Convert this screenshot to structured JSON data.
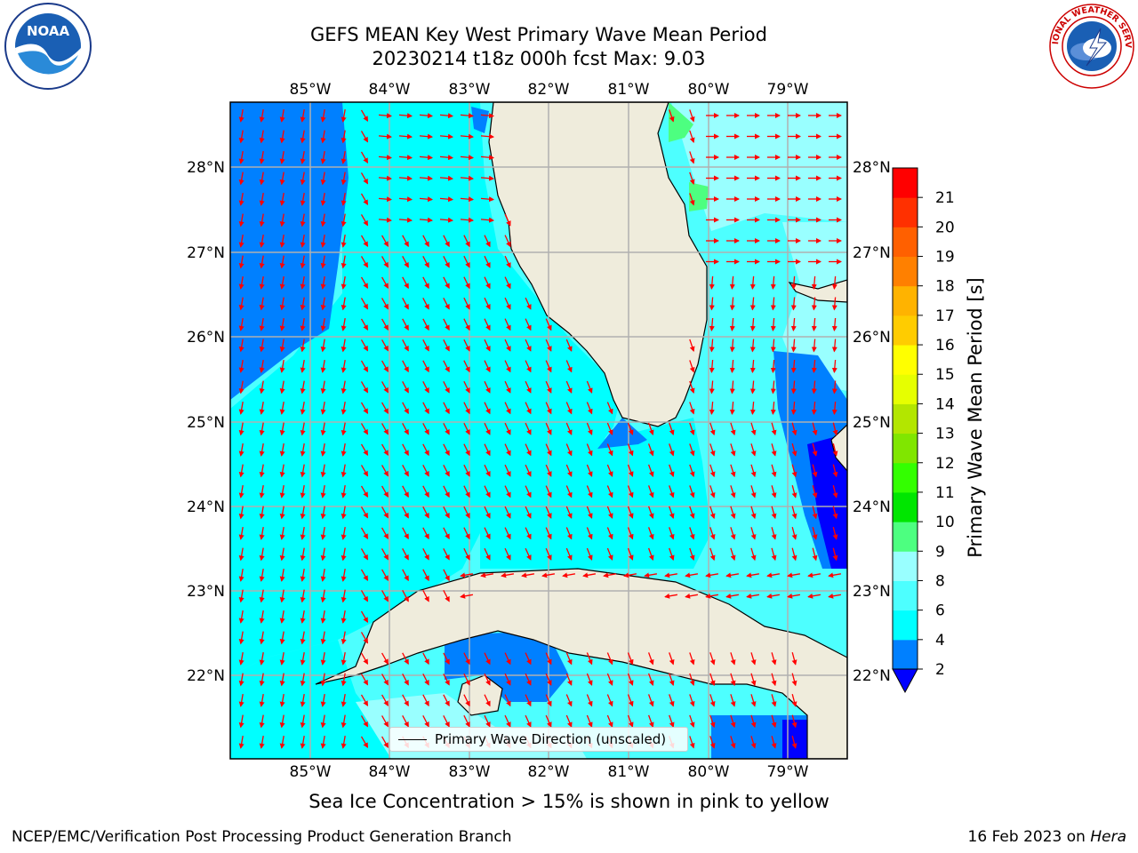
{
  "title_line1": "GEFS MEAN Key West Primary Wave Mean Period",
  "title_line2": "20230214 t18z 000h fcst   Max: 9.03",
  "map": {
    "lon_labels": [
      "85°W",
      "84°W",
      "83°W",
      "82°W",
      "81°W",
      "80°W",
      "79°W"
    ],
    "lat_labels": [
      "28°N",
      "27°N",
      "26°N",
      "25°N",
      "24°N",
      "23°N",
      "22°N"
    ],
    "land_color": "#efecdc",
    "arrow_color": "#ff0000",
    "grid": true
  },
  "legend": {
    "label": "Primary Wave Direction (unscaled)"
  },
  "colorbar": {
    "label": "Primary Wave Mean Period [s]",
    "ticks": [
      "2",
      "4",
      "6",
      "8",
      "9",
      "10",
      "11",
      "12",
      "13",
      "14",
      "15",
      "16",
      "17",
      "18",
      "19",
      "20",
      "21"
    ],
    "colors": [
      "#0080ff",
      "#00ffff",
      "#4dffff",
      "#99ffff",
      "#4dff80",
      "#00e600",
      "#33ff00",
      "#80e600",
      "#b3e600",
      "#e6ff00",
      "#ffff00",
      "#ffcc00",
      "#ffb300",
      "#ff8000",
      "#ff6000",
      "#ff3000",
      "#ff0000"
    ],
    "under_color": "#0000ff"
  },
  "sea_ice_note": "Sea Ice Concentration > 15% is shown in pink to yellow",
  "footer": {
    "left": "NCEP/EMC/Verification Post Processing Product Generation Branch",
    "date": "16 Feb 2023 on ",
    "machine": "Hera"
  },
  "logos": {
    "noaa": "NOAA",
    "nws": "NATIONAL WEATHER SERVICE"
  }
}
